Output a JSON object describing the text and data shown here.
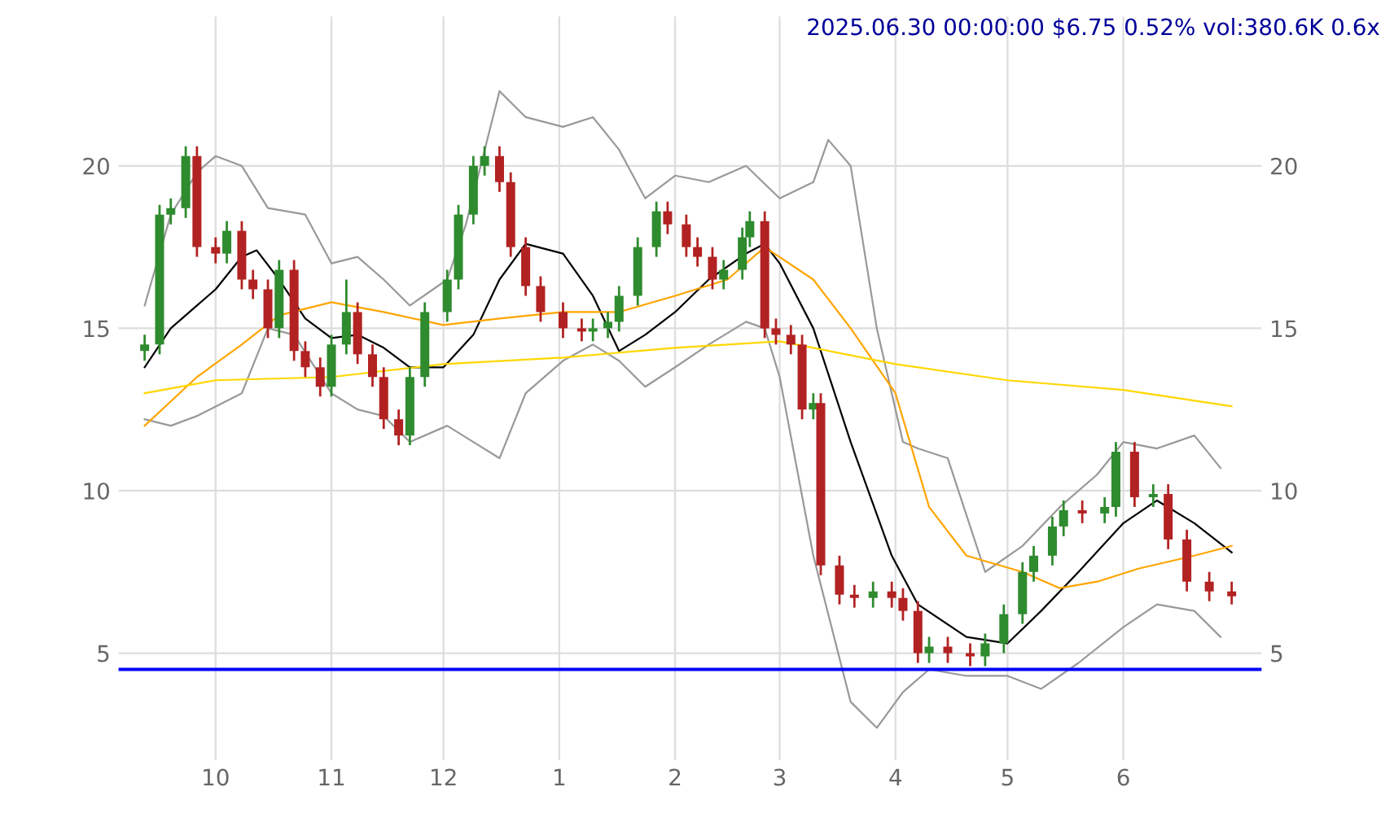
{
  "chart_data": {
    "type": "candlestick",
    "title": "2025.06.30 00:00:00 $6.75 0.52% vol:380.6K 0.6x",
    "x": [
      "2024-09-12",
      "2024-09-16",
      "2024-09-19",
      "2024-09-23",
      "2024-09-26",
      "2024-10-01",
      "2024-10-04",
      "2024-10-08",
      "2024-10-11",
      "2024-10-15",
      "2024-10-18",
      "2024-10-22",
      "2024-10-25",
      "2024-10-29",
      "2024-11-01",
      "2024-11-05",
      "2024-11-08",
      "2024-11-12",
      "2024-11-15",
      "2024-11-19",
      "2024-11-22",
      "2024-11-26",
      "2024-12-02",
      "2024-12-05",
      "2024-12-09",
      "2024-12-12",
      "2024-12-16",
      "2024-12-19",
      "2024-12-23",
      "2024-12-27",
      "2025-01-02",
      "2025-01-07",
      "2025-01-10",
      "2025-01-14",
      "2025-01-17",
      "2025-01-22",
      "2025-01-27",
      "2025-01-30",
      "2025-02-04",
      "2025-02-07",
      "2025-02-11",
      "2025-02-14",
      "2025-02-19",
      "2025-02-21",
      "2025-02-25",
      "2025-02-28",
      "2025-03-04",
      "2025-03-07",
      "2025-03-10",
      "2025-03-12",
      "2025-03-17",
      "2025-03-21",
      "2025-03-26",
      "2025-03-31",
      "2025-04-03",
      "2025-04-07",
      "2025-04-10",
      "2025-04-15",
      "2025-04-21",
      "2025-04-25",
      "2025-04-30",
      "2025-05-05",
      "2025-05-08",
      "2025-05-13",
      "2025-05-16",
      "2025-05-21",
      "2025-05-27",
      "2025-05-30",
      "2025-06-04",
      "2025-06-09",
      "2025-06-13",
      "2025-06-18",
      "2025-06-24",
      "2025-06-30"
    ],
    "ohlc": [
      [
        14.3,
        14.8,
        14.0,
        14.5
      ],
      [
        14.5,
        18.8,
        14.2,
        18.5
      ],
      [
        18.5,
        19.0,
        18.2,
        18.7
      ],
      [
        18.7,
        20.6,
        18.4,
        20.3
      ],
      [
        20.3,
        20.6,
        17.2,
        17.5
      ],
      [
        17.5,
        17.8,
        17.0,
        17.3
      ],
      [
        17.3,
        18.3,
        17.0,
        18.0
      ],
      [
        18.0,
        18.3,
        16.2,
        16.5
      ],
      [
        16.5,
        16.8,
        15.9,
        16.2
      ],
      [
        16.2,
        16.5,
        14.7,
        15.0
      ],
      [
        15.0,
        17.1,
        14.7,
        16.8
      ],
      [
        16.8,
        17.1,
        14.0,
        14.3
      ],
      [
        14.3,
        14.6,
        13.5,
        13.8
      ],
      [
        13.8,
        14.1,
        12.9,
        13.2
      ],
      [
        13.2,
        14.8,
        12.9,
        14.5
      ],
      [
        14.5,
        16.5,
        14.2,
        15.5
      ],
      [
        15.5,
        15.8,
        13.9,
        14.2
      ],
      [
        14.2,
        14.5,
        13.2,
        13.5
      ],
      [
        13.5,
        13.8,
        11.9,
        12.2
      ],
      [
        12.2,
        12.5,
        11.4,
        11.7
      ],
      [
        11.7,
        13.8,
        11.4,
        13.5
      ],
      [
        13.5,
        15.8,
        13.2,
        15.5
      ],
      [
        15.5,
        16.8,
        15.2,
        16.5
      ],
      [
        16.5,
        18.8,
        16.2,
        18.5
      ],
      [
        18.5,
        20.3,
        18.2,
        20.0
      ],
      [
        20.0,
        20.6,
        19.7,
        20.3
      ],
      [
        20.3,
        20.6,
        19.2,
        19.5
      ],
      [
        19.5,
        19.8,
        17.2,
        17.5
      ],
      [
        17.5,
        17.8,
        16.0,
        16.3
      ],
      [
        16.3,
        16.6,
        15.2,
        15.5
      ],
      [
        15.5,
        15.8,
        14.7,
        15.0
      ],
      [
        15.0,
        15.3,
        14.6,
        14.9
      ],
      [
        14.9,
        15.3,
        14.6,
        15.0
      ],
      [
        15.0,
        15.5,
        14.7,
        15.2
      ],
      [
        15.2,
        16.3,
        14.9,
        16.0
      ],
      [
        16.0,
        17.8,
        15.7,
        17.5
      ],
      [
        17.5,
        18.9,
        17.2,
        18.6
      ],
      [
        18.6,
        18.9,
        17.9,
        18.2
      ],
      [
        18.2,
        18.5,
        17.2,
        17.5
      ],
      [
        17.5,
        17.8,
        16.9,
        17.2
      ],
      [
        17.2,
        17.5,
        16.2,
        16.5
      ],
      [
        16.5,
        17.1,
        16.2,
        16.8
      ],
      [
        16.8,
        18.1,
        16.5,
        17.8
      ],
      [
        17.8,
        18.6,
        17.5,
        18.3
      ],
      [
        18.3,
        18.6,
        14.7,
        15.0
      ],
      [
        15.0,
        15.3,
        14.5,
        14.8
      ],
      [
        14.8,
        15.1,
        14.2,
        14.5
      ],
      [
        14.5,
        14.8,
        12.2,
        12.5
      ],
      [
        12.5,
        13.0,
        12.2,
        12.7
      ],
      [
        12.7,
        13.0,
        7.4,
        7.7
      ],
      [
        7.7,
        8.0,
        6.5,
        6.8
      ],
      [
        6.8,
        7.1,
        6.4,
        6.7
      ],
      [
        6.7,
        7.2,
        6.4,
        6.9
      ],
      [
        6.9,
        7.2,
        6.4,
        6.7
      ],
      [
        6.7,
        7.0,
        6.0,
        6.3
      ],
      [
        6.3,
        6.6,
        4.7,
        5.0
      ],
      [
        5.0,
        5.5,
        4.7,
        5.2
      ],
      [
        5.2,
        5.5,
        4.7,
        5.0
      ],
      [
        5.0,
        5.3,
        4.6,
        4.9
      ],
      [
        4.9,
        5.6,
        4.6,
        5.3
      ],
      [
        5.3,
        6.5,
        5.0,
        6.2
      ],
      [
        6.2,
        7.8,
        5.9,
        7.5
      ],
      [
        7.5,
        8.3,
        7.2,
        8.0
      ],
      [
        8.0,
        9.2,
        7.7,
        8.9
      ],
      [
        8.9,
        9.7,
        8.6,
        9.4
      ],
      [
        9.4,
        9.7,
        9.0,
        9.3
      ],
      [
        9.3,
        9.8,
        9.0,
        9.5
      ],
      [
        9.5,
        11.5,
        9.2,
        11.2
      ],
      [
        11.2,
        11.5,
        9.5,
        9.8
      ],
      [
        9.8,
        10.2,
        9.5,
        9.9
      ],
      [
        9.9,
        10.2,
        8.2,
        8.5
      ],
      [
        8.5,
        8.8,
        6.9,
        7.2
      ],
      [
        7.2,
        7.5,
        6.6,
        6.9
      ],
      [
        6.9,
        7.2,
        6.5,
        6.75
      ]
    ],
    "colors": [
      "#2e8b2e",
      "#2e8b2e",
      "#2e8b2e",
      "#2e8b2e",
      "#b22222",
      "#b22222",
      "#2e8b2e",
      "#b22222",
      "#b22222",
      "#b22222",
      "#2e8b2e",
      "#b22222",
      "#b22222",
      "#b22222",
      "#2e8b2e",
      "#2e8b2e",
      "#b22222",
      "#b22222",
      "#b22222",
      "#b22222",
      "#2e8b2e",
      "#2e8b2e",
      "#2e8b2e",
      "#2e8b2e",
      "#2e8b2e",
      "#2e8b2e",
      "#b22222",
      "#b22222",
      "#b22222",
      "#b22222",
      "#b22222",
      "#b22222",
      "#2e8b2e",
      "#2e8b2e",
      "#2e8b2e",
      "#2e8b2e",
      "#2e8b2e",
      "#b22222",
      "#b22222",
      "#b22222",
      "#b22222",
      "#2e8b2e",
      "#2e8b2e",
      "#2e8b2e",
      "#b22222",
      "#b22222",
      "#b22222",
      "#b22222",
      "#2e8b2e",
      "#b22222",
      "#b22222",
      "#b22222",
      "#2e8b2e",
      "#b22222",
      "#b22222",
      "#b22222",
      "#2e8b2e",
      "#b22222",
      "#b22222",
      "#2e8b2e",
      "#2e8b2e",
      "#2e8b2e",
      "#2e8b2e",
      "#2e8b2e",
      "#2e8b2e",
      "#b22222",
      "#2e8b2e",
      "#2e8b2e",
      "#b22222",
      "#2e8b2e",
      "#b22222",
      "#b22222",
      "#b22222",
      "#b22222"
    ],
    "series": [
      {
        "type": "line",
        "color": "#999999",
        "x": [
          "2024-09-12",
          "2024-09-19",
          "2024-09-26",
          "2024-10-01",
          "2024-10-08",
          "2024-10-15",
          "2024-10-25",
          "2024-11-01",
          "2024-11-08",
          "2024-11-15",
          "2024-11-22",
          "2024-12-02",
          "2024-12-07",
          "2024-12-16",
          "2024-12-23",
          "2025-01-02",
          "2025-01-10",
          "2025-01-17",
          "2025-01-24",
          "2025-02-01",
          "2025-02-10",
          "2025-02-20",
          "2025-03-01",
          "2025-03-10",
          "2025-03-14",
          "2025-03-20",
          "2025-03-27",
          "2025-04-03",
          "2025-04-07",
          "2025-04-15",
          "2025-04-25",
          "2025-05-05",
          "2025-05-15",
          "2025-05-25",
          "2025-06-01",
          "2025-06-10",
          "2025-06-20",
          "2025-06-27"
        ],
        "values": [
          15.7,
          18.5,
          19.8,
          20.3,
          20.0,
          18.7,
          18.5,
          17.0,
          17.2,
          16.5,
          15.7,
          16.5,
          18.2,
          22.3,
          21.5,
          21.2,
          21.5,
          20.5,
          19.0,
          19.7,
          19.5,
          20.0,
          19.0,
          19.5,
          20.8,
          20.0,
          15.0,
          11.5,
          11.3,
          11.0,
          7.5,
          8.3,
          9.5,
          10.5,
          11.5,
          11.3,
          11.7,
          10.7
        ]
      },
      {
        "type": "line",
        "color": "#999999",
        "x": [
          "2024-09-12",
          "2024-09-19",
          "2024-09-26",
          "2024-10-08",
          "2024-10-15",
          "2024-10-22",
          "2024-11-01",
          "2024-11-08",
          "2024-11-15",
          "2024-11-22",
          "2024-12-02",
          "2024-12-09",
          "2024-12-16",
          "2024-12-23",
          "2025-01-02",
          "2025-01-10",
          "2025-01-17",
          "2025-01-24",
          "2025-02-01",
          "2025-02-10",
          "2025-02-20",
          "2025-02-25",
          "2025-03-01",
          "2025-03-10",
          "2025-03-20",
          "2025-03-27",
          "2025-04-03",
          "2025-04-10",
          "2025-04-20",
          "2025-05-01",
          "2025-05-10",
          "2025-05-20",
          "2025-06-01",
          "2025-06-10",
          "2025-06-20",
          "2025-06-27"
        ],
        "values": [
          12.2,
          12.0,
          12.3,
          13.0,
          15.0,
          14.8,
          13.0,
          12.5,
          12.3,
          11.5,
          12.0,
          11.5,
          11.0,
          13.0,
          14.0,
          14.5,
          14.0,
          13.2,
          13.8,
          14.5,
          15.2,
          15.0,
          13.5,
          8.0,
          3.5,
          2.7,
          3.8,
          4.5,
          4.3,
          4.3,
          3.9,
          4.7,
          5.8,
          6.5,
          6.3,
          5.5
        ]
      },
      {
        "type": "line",
        "color": "#000000",
        "x": [
          "2024-09-12",
          "2024-09-19",
          "2024-09-26",
          "2024-10-01",
          "2024-10-08",
          "2024-10-12",
          "2024-10-18",
          "2024-10-25",
          "2024-11-01",
          "2024-11-08",
          "2024-11-15",
          "2024-11-22",
          "2024-12-01",
          "2024-12-09",
          "2024-12-16",
          "2024-12-23",
          "2025-01-02",
          "2025-01-10",
          "2025-01-17",
          "2025-01-24",
          "2025-02-01",
          "2025-02-10",
          "2025-02-20",
          "2025-02-25",
          "2025-03-01",
          "2025-03-10",
          "2025-03-20",
          "2025-03-31",
          "2025-04-07",
          "2025-04-20",
          "2025-05-01",
          "2025-05-10",
          "2025-05-20",
          "2025-06-01",
          "2025-06-10",
          "2025-06-20",
          "2025-06-30"
        ],
        "values": [
          13.8,
          15.0,
          15.7,
          16.2,
          17.2,
          17.4,
          16.5,
          15.3,
          14.7,
          14.8,
          14.4,
          13.8,
          13.8,
          14.8,
          16.5,
          17.6,
          17.3,
          16.0,
          14.3,
          14.8,
          15.5,
          16.5,
          17.3,
          17.6,
          17.0,
          15.0,
          11.5,
          8.0,
          6.5,
          5.5,
          5.3,
          6.3,
          7.5,
          9.0,
          9.7,
          9.0,
          8.1
        ]
      },
      {
        "type": "line",
        "color": "#ffa500",
        "x": [
          "2024-09-12",
          "2024-09-26",
          "2024-10-08",
          "2024-10-18",
          "2024-11-01",
          "2024-11-15",
          "2024-12-01",
          "2024-12-16",
          "2025-01-02",
          "2025-01-17",
          "2025-02-01",
          "2025-02-15",
          "2025-02-25",
          "2025-03-10",
          "2025-03-20",
          "2025-04-01",
          "2025-04-10",
          "2025-04-20",
          "2025-05-05",
          "2025-05-15",
          "2025-05-25",
          "2025-06-05",
          "2025-06-20",
          "2025-06-30"
        ],
        "values": [
          12.0,
          13.5,
          14.5,
          15.4,
          15.8,
          15.5,
          15.1,
          15.3,
          15.5,
          15.5,
          16.0,
          16.5,
          17.5,
          16.5,
          15.0,
          13.0,
          9.5,
          8.0,
          7.5,
          7.0,
          7.2,
          7.6,
          8.0,
          8.3
        ]
      },
      {
        "type": "line",
        "color": "#ffd700",
        "x": [
          "2024-09-12",
          "2024-10-01",
          "2024-11-01",
          "2024-12-01",
          "2025-01-02",
          "2025-02-01",
          "2025-03-01",
          "2025-04-01",
          "2025-05-01",
          "2025-06-01",
          "2025-06-30"
        ],
        "values": [
          13.0,
          13.4,
          13.5,
          13.9,
          14.1,
          14.4,
          14.6,
          13.9,
          13.4,
          13.1,
          12.6
        ]
      }
    ],
    "ref_lines": [
      {
        "axis": "y",
        "value": 4.5,
        "color": "#0000ff"
      }
    ],
    "xlim": [
      "2024-09-05",
      "2025-07-08"
    ],
    "xticks": [
      {
        "value": "2024-10-01",
        "label": "10"
      },
      {
        "value": "2024-11-01",
        "label": "11"
      },
      {
        "value": "2024-12-01",
        "label": "12"
      },
      {
        "value": "2025-01-01",
        "label": "1"
      },
      {
        "value": "2025-02-01",
        "label": "2"
      },
      {
        "value": "2025-03-01",
        "label": "3"
      },
      {
        "value": "2025-04-01",
        "label": "4"
      },
      {
        "value": "2025-05-01",
        "label": "5"
      },
      {
        "value": "2025-06-01",
        "label": "6"
      }
    ],
    "ylim": [
      1.7,
      24.6
    ],
    "yticks": [
      5,
      10,
      15,
      20
    ],
    "y2lim": [
      1.7,
      24.6
    ],
    "y2ticks": [
      5,
      10,
      15,
      20
    ],
    "grid": true
  }
}
